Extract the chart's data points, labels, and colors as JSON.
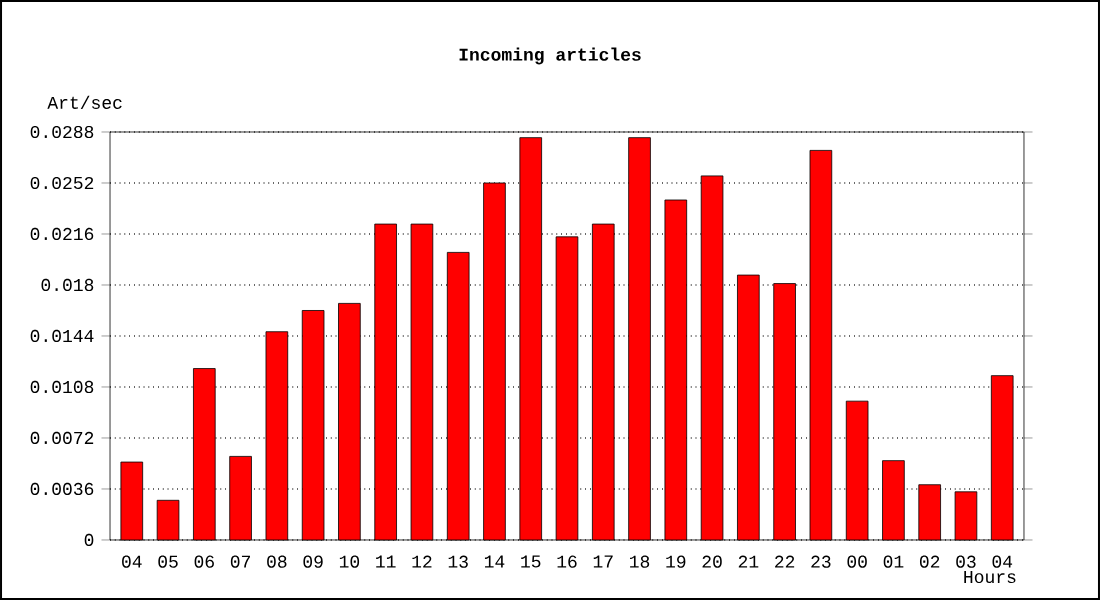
{
  "chart_data": {
    "type": "bar",
    "title": "Incoming articles",
    "xlabel": "Hours",
    "ylabel": "Art/sec",
    "categories": [
      "04",
      "05",
      "06",
      "07",
      "08",
      "09",
      "10",
      "11",
      "12",
      "13",
      "14",
      "15",
      "16",
      "17",
      "18",
      "19",
      "20",
      "21",
      "22",
      "23",
      "00",
      "01",
      "02",
      "03",
      "04"
    ],
    "values": [
      0.0055,
      0.0028,
      0.0121,
      0.0059,
      0.0147,
      0.0162,
      0.0167,
      0.0223,
      0.0223,
      0.0203,
      0.0252,
      0.0284,
      0.0214,
      0.0223,
      0.0284,
      0.024,
      0.0257,
      0.0187,
      0.0181,
      0.0275,
      0.0098,
      0.0056,
      0.0039,
      0.0034,
      0.0116
    ],
    "color": "#ff0000",
    "ylim": [
      0,
      0.0288
    ],
    "yticks": [
      0,
      0.0036,
      0.0072,
      0.0108,
      0.0144,
      0.018,
      0.0216,
      0.0252,
      0.0288
    ],
    "grid": "y"
  }
}
